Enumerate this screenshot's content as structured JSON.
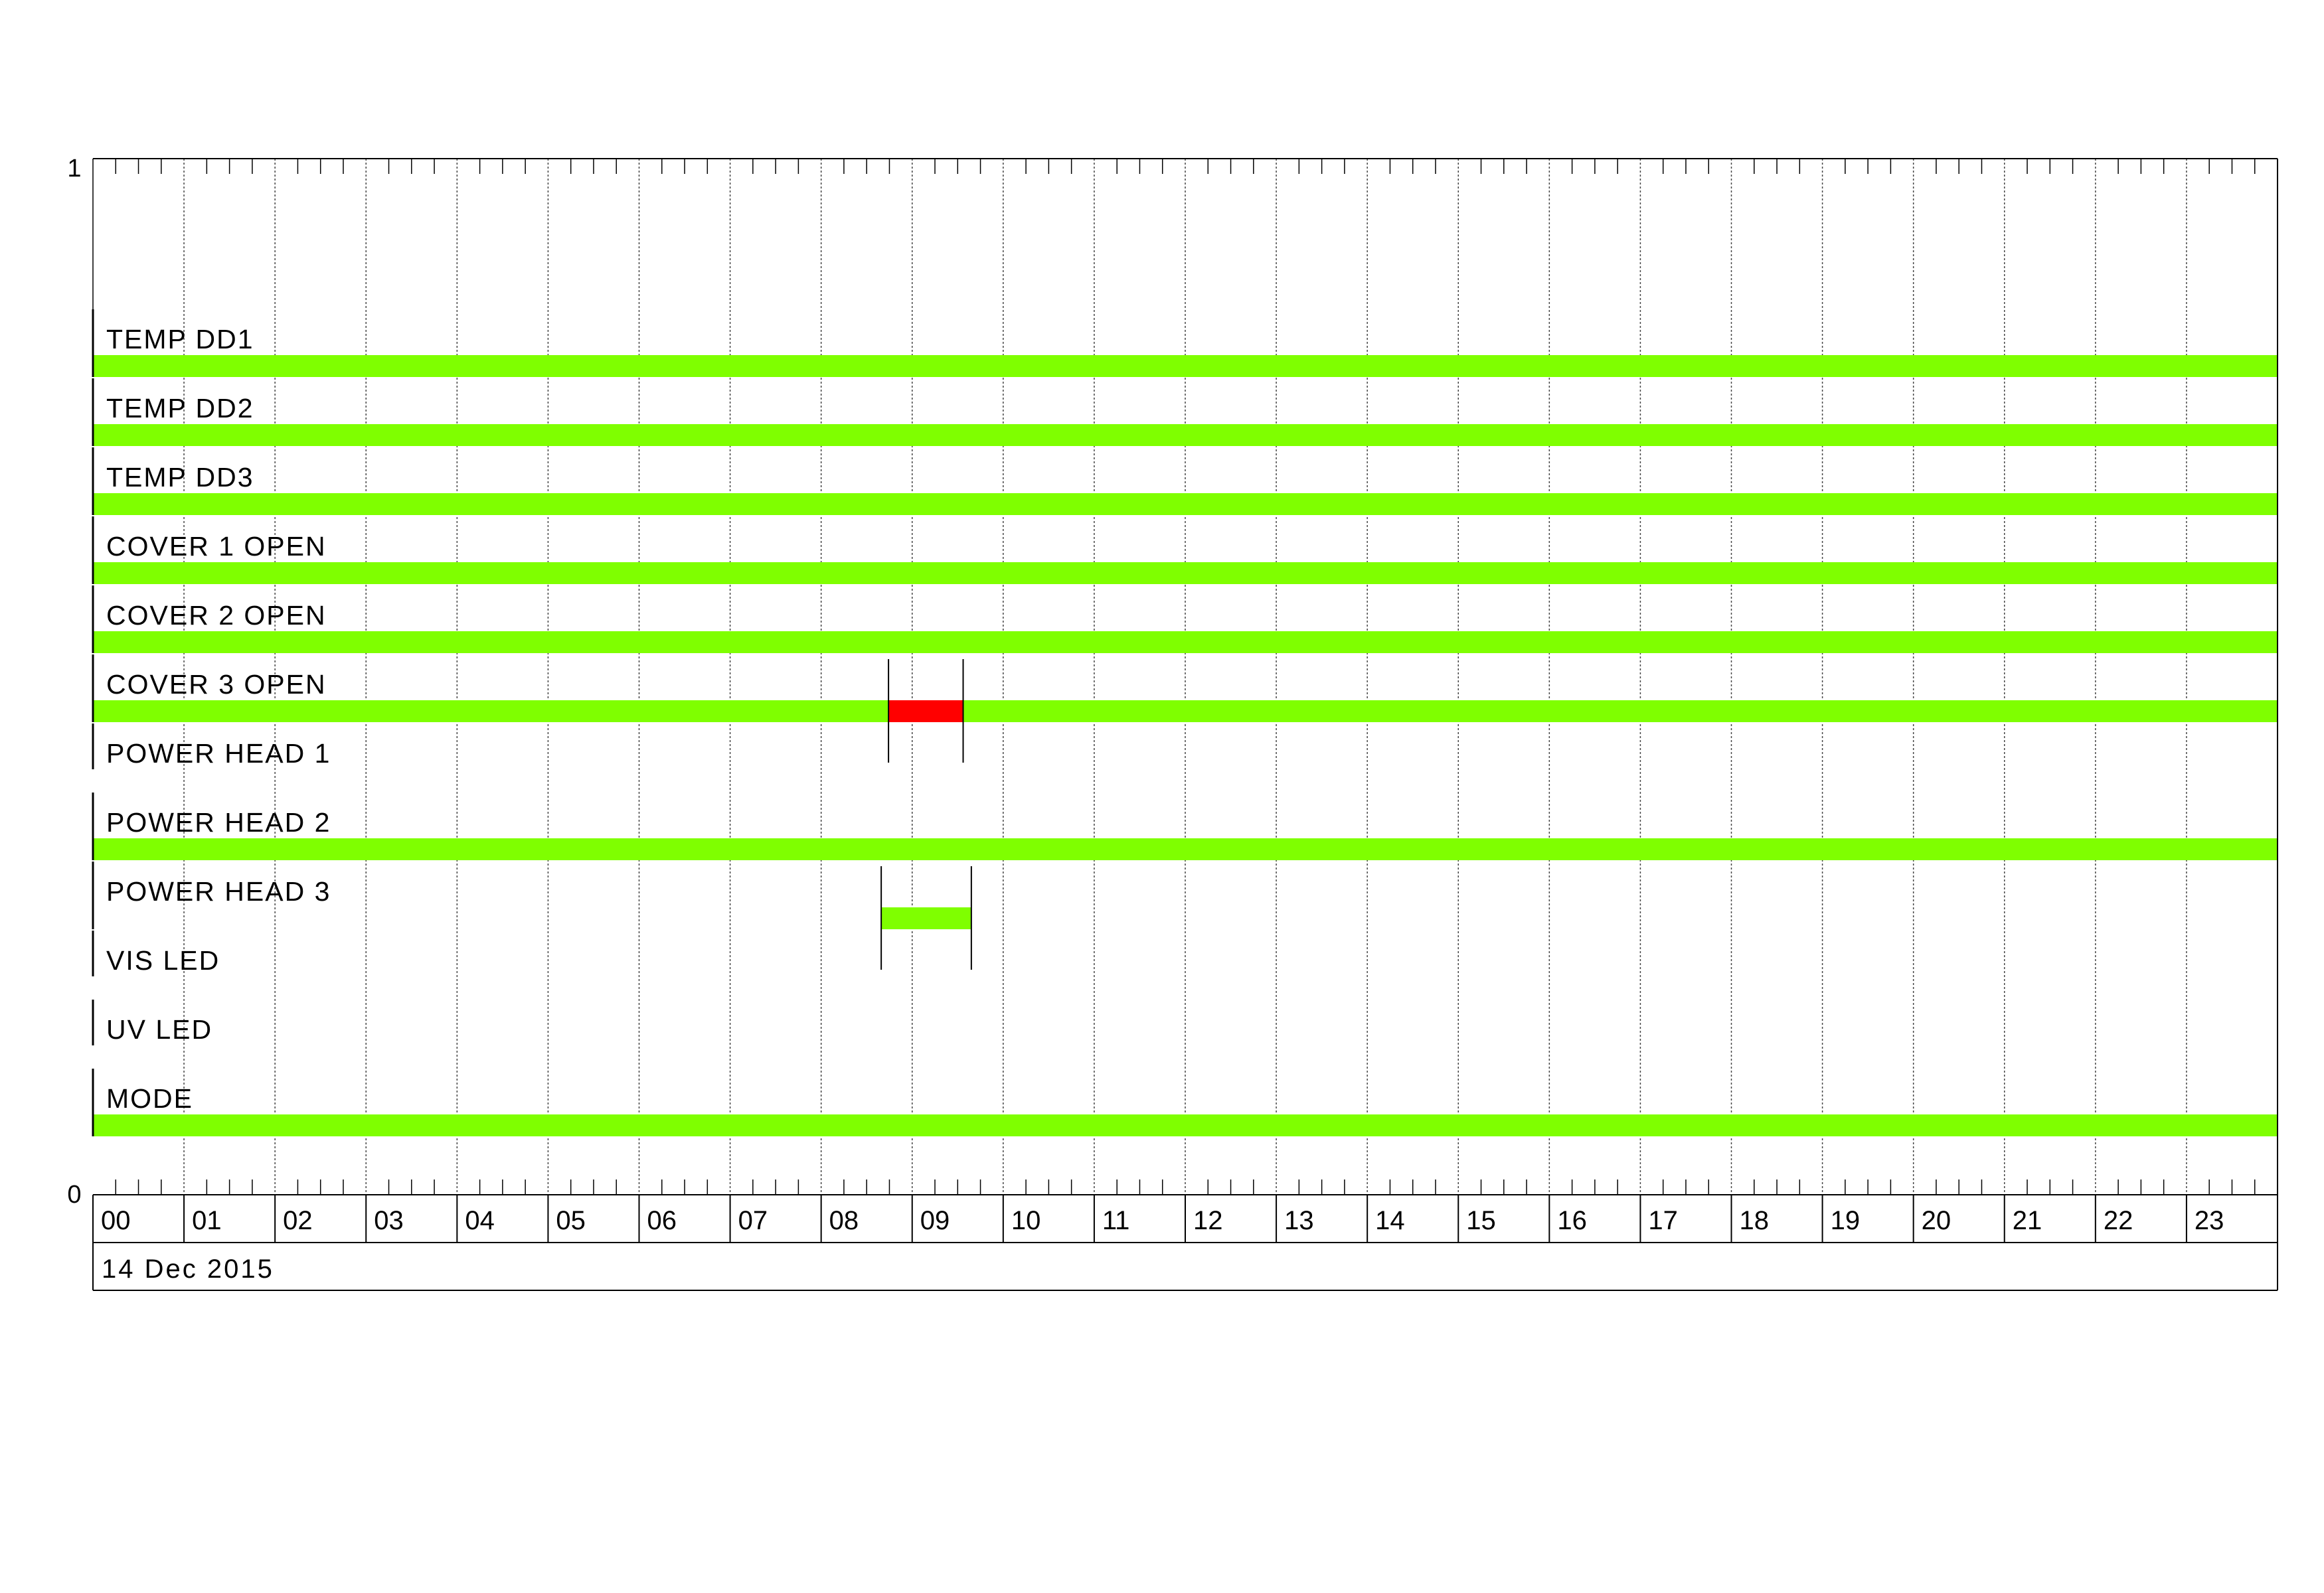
{
  "chart_data": {
    "type": "timeline",
    "title": "",
    "y_axis_ticks": [
      "1",
      "0"
    ],
    "x_tick_labels": [
      "00",
      "01",
      "02",
      "03",
      "04",
      "05",
      "06",
      "07",
      "08",
      "09",
      "10",
      "11",
      "12",
      "13",
      "14",
      "15",
      "16",
      "17",
      "18",
      "19",
      "20",
      "21",
      "22",
      "23"
    ],
    "x_range_hours": [
      0,
      24
    ],
    "date_label": "14 Dec 2015",
    "grid": true,
    "colors": {
      "ok": "#7fff00",
      "alarm": "#ff0000",
      "grid": "#888888"
    },
    "rows": [
      {
        "label": "TEMP DD1",
        "segments": [
          {
            "start": 0,
            "end": 24,
            "state": "ok"
          }
        ]
      },
      {
        "label": "TEMP DD2",
        "segments": [
          {
            "start": 0,
            "end": 24,
            "state": "ok"
          }
        ]
      },
      {
        "label": "TEMP DD3",
        "segments": [
          {
            "start": 0,
            "end": 24,
            "state": "ok"
          }
        ]
      },
      {
        "label": "COVER 1 OPEN",
        "segments": [
          {
            "start": 0,
            "end": 24,
            "state": "ok"
          }
        ]
      },
      {
        "label": "COVER 2 OPEN",
        "segments": [
          {
            "start": 0,
            "end": 24,
            "state": "ok"
          }
        ]
      },
      {
        "label": "COVER 3 OPEN",
        "segments": [
          {
            "start": 0,
            "end": 8.74,
            "state": "ok"
          },
          {
            "start": 8.74,
            "end": 9.56,
            "state": "alarm"
          },
          {
            "start": 9.56,
            "end": 24,
            "state": "ok"
          }
        ],
        "markers": [
          8.74,
          9.56
        ]
      },
      {
        "label": "POWER HEAD 1",
        "segments": []
      },
      {
        "label": "POWER HEAD 2",
        "segments": [
          {
            "start": 0,
            "end": 24,
            "state": "ok"
          }
        ]
      },
      {
        "label": "POWER HEAD 3",
        "segments": [
          {
            "start": 8.66,
            "end": 9.65,
            "state": "ok"
          }
        ],
        "markers": [
          8.66,
          9.65
        ]
      },
      {
        "label": "VIS LED",
        "segments": []
      },
      {
        "label": "UV LED",
        "segments": []
      },
      {
        "label": "MODE",
        "segments": [
          {
            "start": 0,
            "end": 24,
            "state": "ok"
          }
        ]
      }
    ]
  }
}
